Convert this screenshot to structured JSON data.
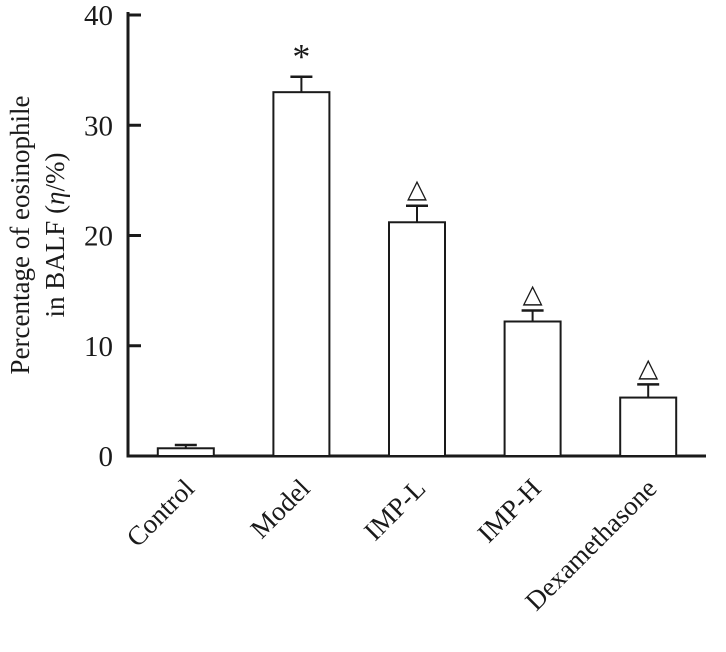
{
  "chart_data": {
    "type": "bar",
    "categories": [
      "Control",
      "Model",
      "IMP-L",
      "IMP-H",
      "Dexamethasone"
    ],
    "values": [
      0.7,
      33,
      21.2,
      12.2,
      5.3
    ],
    "errors": [
      0.3,
      1.4,
      1.5,
      1.0,
      1.2
    ],
    "annotations": [
      "",
      "*",
      "△",
      "△",
      "△"
    ],
    "ylabel_line1": "Percentage of eosinophile",
    "ylabel_line2_pre": "in BALF (",
    "ylabel_eta": "η",
    "ylabel_line2_post": "/%)",
    "xlabel": "",
    "title": "",
    "ylim": [
      0,
      40
    ],
    "yticks": [
      0,
      10,
      20,
      30,
      40
    ],
    "grid": "off",
    "legend": "none",
    "bar_color": "#ffffff",
    "line_color": "#1a1a1a"
  }
}
